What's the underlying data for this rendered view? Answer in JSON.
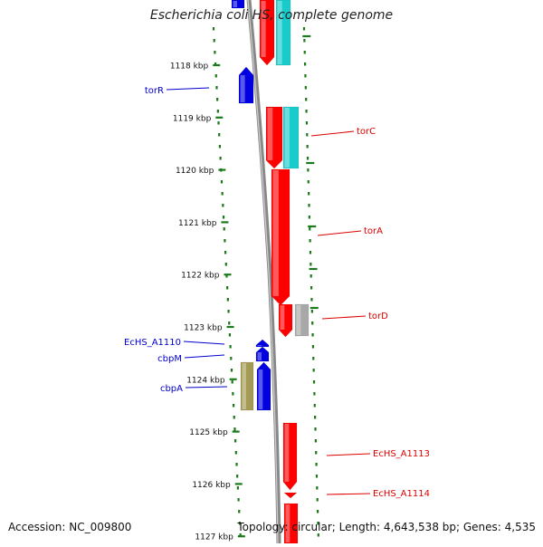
{
  "title": "Escherichia coli HS, complete genome",
  "footer": {
    "accession": "Accession: NC_009800",
    "summary": "Topology: circular; Length: 4,643,538 bp; Genes: 4,535"
  },
  "colors": {
    "forward": "#ff0000",
    "reverse": "#0000e0",
    "cyan": "#19cccc",
    "grey": "#a8a8a8",
    "olive": "#a39a55",
    "tick": "#1a7a1a",
    "backbone": "#888888",
    "label_left": "#0000cc",
    "label_right": "#dd0000"
  },
  "ticks": [
    {
      "label": "1118 kbp"
    },
    {
      "label": "1119 kbp"
    },
    {
      "label": "1120 kbp"
    },
    {
      "label": "1121 kbp"
    },
    {
      "label": "1122 kbp"
    },
    {
      "label": "1123 kbp"
    },
    {
      "label": "1124 kbp"
    },
    {
      "label": "1125 kbp"
    },
    {
      "label": "1126 kbp"
    },
    {
      "label": "1127 kbp"
    }
  ],
  "gene_labels_left": [
    {
      "name": "torR"
    },
    {
      "name": "EcHS_A1110"
    },
    {
      "name": "cbpM"
    },
    {
      "name": "cbpA"
    }
  ],
  "gene_labels_right": [
    {
      "name": "torC"
    },
    {
      "name": "torA"
    },
    {
      "name": "torD"
    },
    {
      "name": "EcHS_A1113"
    },
    {
      "name": "EcHS_A1114"
    }
  ]
}
